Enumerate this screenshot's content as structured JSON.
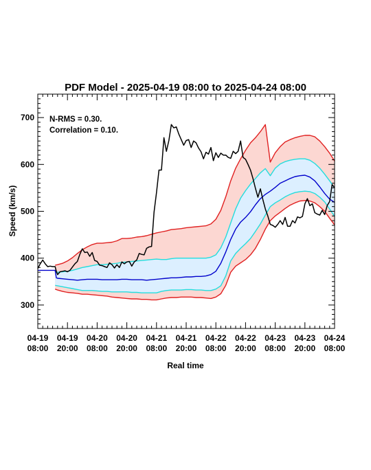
{
  "chart_data": {
    "type": "line",
    "title": "PDF Model - 2025-04-19 08:00 to 2025-04-24 08:00",
    "xlabel": "Real time",
    "ylabel": "Speed (km/s)",
    "xlim_hours": [
      0,
      120
    ],
    "ylim": [
      250,
      750
    ],
    "yticks": [
      300,
      400,
      500,
      600,
      700
    ],
    "xticks": [
      {
        "line1": "04-19",
        "line2": "08:00",
        "hours": 0
      },
      {
        "line1": "04-19",
        "line2": "20:00",
        "hours": 12
      },
      {
        "line1": "04-20",
        "line2": "08:00",
        "hours": 24
      },
      {
        "line1": "04-20",
        "line2": "20:00",
        "hours": 36
      },
      {
        "line1": "04-21",
        "line2": "08:00",
        "hours": 48
      },
      {
        "line1": "04-21",
        "line2": "20:00",
        "hours": 60
      },
      {
        "line1": "04-22",
        "line2": "08:00",
        "hours": 72
      },
      {
        "line1": "04-22",
        "line2": "20:00",
        "hours": 84
      },
      {
        "line1": "04-23",
        "line2": "08:00",
        "hours": 96
      },
      {
        "line1": "04-23",
        "line2": "20:00",
        "hours": 108
      },
      {
        "line1": "04-24",
        "line2": "08:00",
        "hours": 120
      }
    ],
    "annotations": [
      "N-RMS = 0.30.",
      "Correlation = 0.10."
    ],
    "colors": {
      "observed": "#000000",
      "median": "#0000cc",
      "inner": "#22dddd",
      "outer": "#e02020",
      "outer_fill": "#fcd7d2",
      "inner_fill": "#dcefff"
    },
    "series": [
      {
        "key": "upper_outer",
        "x": [
          7,
          8,
          10,
          12,
          14,
          16,
          18,
          20,
          22,
          24,
          26,
          28,
          30,
          32,
          34,
          36,
          38,
          40,
          42,
          44,
          46,
          48,
          50,
          52,
          54,
          56,
          58,
          60,
          62,
          64,
          66,
          68,
          70,
          72,
          74,
          76,
          78,
          80,
          82,
          84,
          86,
          88,
          90,
          92,
          94,
          96,
          98,
          100,
          102,
          104,
          106,
          108,
          110,
          112,
          114,
          116,
          118,
          120
        ],
        "y": [
          385,
          386,
          389,
          394,
          401,
          410,
          418,
          424,
          429,
          432,
          432,
          433,
          434,
          437,
          442,
          442,
          443,
          445,
          446,
          448,
          451,
          454,
          456,
          458,
          461,
          462,
          463,
          465,
          466,
          467,
          468,
          469,
          473,
          483,
          502,
          531,
          565,
          592,
          612,
          630,
          646,
          657,
          670,
          685,
          605,
          625,
          638,
          648,
          653,
          657,
          660,
          662,
          662,
          659,
          650,
          638,
          624,
          607
        ]
      },
      {
        "key": "upper_inner",
        "x": [
          7,
          8,
          10,
          12,
          14,
          16,
          18,
          20,
          22,
          24,
          26,
          28,
          30,
          32,
          34,
          36,
          38,
          40,
          42,
          44,
          46,
          48,
          50,
          52,
          54,
          56,
          58,
          60,
          62,
          64,
          66,
          68,
          70,
          72,
          74,
          76,
          78,
          80,
          82,
          84,
          86,
          88,
          90,
          92,
          94,
          96,
          98,
          100,
          102,
          104,
          106,
          108,
          110,
          112,
          114,
          116,
          118,
          120
        ],
        "y": [
          370,
          370,
          371,
          372,
          374,
          377,
          380,
          382,
          384,
          386,
          386,
          387,
          388,
          389,
          391,
          392,
          393,
          394,
          395,
          396,
          397,
          398,
          397,
          397,
          399,
          400,
          400,
          400,
          400,
          400,
          400,
          400,
          402,
          407,
          422,
          445,
          475,
          505,
          528,
          544,
          558,
          570,
          582,
          591,
          576,
          592,
          601,
          606,
          609,
          611,
          612,
          612,
          609,
          602,
          592,
          579,
          565,
          550
        ]
      },
      {
        "key": "median",
        "x": [
          0,
          7,
          7.5,
          8,
          10,
          12,
          14,
          16,
          18,
          20,
          22,
          24,
          26,
          28,
          30,
          32,
          34,
          36,
          38,
          40,
          42,
          44,
          46,
          48,
          50,
          52,
          54,
          56,
          58,
          60,
          62,
          64,
          66,
          68,
          70,
          72,
          74,
          76,
          78,
          80,
          82,
          84,
          86,
          88,
          90,
          92,
          94,
          96,
          98,
          100,
          102,
          104,
          106,
          108,
          110,
          112,
          114,
          116,
          118,
          120
        ],
        "y": [
          374,
          374,
          358,
          357,
          356,
          355,
          354,
          353,
          354,
          355,
          355,
          355,
          354,
          354,
          354,
          354,
          355,
          355,
          354,
          354,
          354,
          353,
          354,
          355,
          356,
          357,
          358,
          358,
          359,
          360,
          360,
          361,
          361,
          362,
          365,
          372,
          389,
          413,
          440,
          462,
          477,
          487,
          499,
          514,
          527,
          536,
          543,
          551,
          560,
          565,
          570,
          574,
          576,
          577,
          573,
          565,
          552,
          538,
          526,
          519
        ]
      },
      {
        "key": "lower_inner",
        "x": [
          7,
          8,
          10,
          12,
          14,
          16,
          18,
          20,
          22,
          24,
          26,
          28,
          30,
          32,
          34,
          36,
          38,
          40,
          42,
          44,
          46,
          48,
          50,
          52,
          54,
          56,
          58,
          60,
          62,
          64,
          66,
          68,
          70,
          72,
          74,
          76,
          78,
          80,
          82,
          84,
          86,
          88,
          90,
          92,
          94,
          96,
          98,
          100,
          102,
          104,
          106,
          108,
          110,
          112,
          114,
          116,
          118,
          120
        ],
        "y": [
          342,
          341,
          339,
          337,
          335,
          333,
          331,
          331,
          331,
          330,
          329,
          329,
          328,
          328,
          328,
          328,
          327,
          327,
          326,
          326,
          326,
          326,
          329,
          331,
          332,
          332,
          332,
          333,
          333,
          332,
          332,
          331,
          331,
          334,
          341,
          362,
          394,
          410,
          421,
          431,
          442,
          457,
          473,
          492,
          510,
          518,
          524,
          531,
          536,
          540,
          542,
          543,
          542,
          538,
          530,
          520,
          505,
          489
        ]
      },
      {
        "key": "lower_outer",
        "x": [
          7,
          8,
          10,
          12,
          14,
          16,
          18,
          20,
          22,
          24,
          26,
          28,
          30,
          32,
          34,
          36,
          38,
          40,
          42,
          44,
          46,
          48,
          50,
          52,
          54,
          56,
          58,
          60,
          62,
          64,
          66,
          68,
          70,
          72,
          74,
          76,
          78,
          80,
          82,
          84,
          86,
          88,
          90,
          92,
          94,
          96,
          98,
          100,
          102,
          104,
          106,
          108,
          110,
          112,
          114,
          116,
          118,
          120
        ],
        "y": [
          334,
          332,
          329,
          327,
          326,
          325,
          323,
          323,
          322,
          321,
          320,
          319,
          317,
          316,
          315,
          314,
          313,
          313,
          312,
          312,
          311,
          311,
          313,
          315,
          316,
          316,
          317,
          317,
          317,
          316,
          316,
          315,
          314,
          317,
          324,
          342,
          370,
          383,
          390,
          397,
          407,
          421,
          440,
          462,
          480,
          490,
          498,
          506,
          513,
          518,
          522,
          523,
          522,
          518,
          510,
          500,
          485,
          471
        ]
      },
      {
        "key": "observed",
        "x": [
          0,
          1,
          2,
          3,
          4,
          5,
          6,
          7,
          7.5,
          8,
          9,
          10,
          11,
          12,
          13,
          14,
          15,
          16,
          17,
          18,
          19,
          20,
          21,
          22,
          23,
          24,
          25,
          26,
          27,
          28,
          29,
          30,
          31,
          32,
          33,
          34,
          35,
          36,
          37,
          38,
          39,
          40,
          41,
          42,
          43,
          44,
          45,
          46,
          47,
          48,
          49,
          50,
          51,
          52,
          53,
          54,
          55,
          56,
          57,
          58,
          59,
          60,
          61,
          62,
          63,
          64,
          65,
          66,
          67,
          68,
          69,
          70,
          71,
          72,
          73,
          74,
          75,
          76,
          77,
          78,
          79,
          80,
          81,
          82,
          83,
          84,
          85,
          86,
          87,
          88,
          89,
          90,
          91,
          92,
          93,
          94,
          95,
          96,
          97,
          98,
          99,
          100,
          101,
          102,
          103,
          104,
          105,
          106,
          107,
          108,
          109,
          110,
          111,
          112,
          113,
          114,
          115,
          116,
          117,
          118,
          119,
          120
        ],
        "y": [
          378,
          388,
          396,
          388,
          382,
          383,
          382,
          382,
          372,
          365,
          371,
          372,
          373,
          371,
          374,
          381,
          388,
          393,
          408,
          420,
          412,
          413,
          404,
          412,
          395,
          393,
          385,
          384,
          382,
          380,
          390,
          386,
          379,
          386,
          380,
          392,
          388,
          392,
          393,
          383,
          392,
          396,
          410,
          408,
          407,
          421,
          424,
          425,
          498,
          540,
          588,
          588,
          657,
          628,
          651,
          685,
          678,
          680,
          665,
          653,
          641,
          651,
          653,
          636,
          650,
          646,
          635,
          627,
          612,
          626,
          622,
          636,
          608,
          625,
          615,
          624,
          620,
          620,
          615,
          613,
          628,
          623,
          628,
          650,
          615,
          611,
          600,
          588,
          570,
          549,
          530,
          548,
          525,
          505,
          490,
          472,
          470,
          466,
          472,
          480,
          472,
          487,
          468,
          468,
          480,
          475,
          488,
          486,
          489,
          516,
          527,
          512,
          516,
          497,
          494,
          492,
          502,
          493,
          512,
          521,
          557,
          550
        ]
      }
    ]
  }
}
